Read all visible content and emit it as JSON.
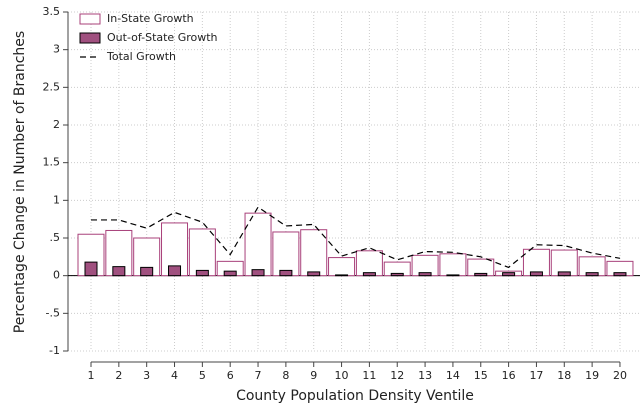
{
  "chart_data": {
    "type": "bar",
    "x_label": "County Population Density Ventile",
    "y_label": "Percentage Change in Number of Branches",
    "categories": [
      "1",
      "2",
      "3",
      "4",
      "5",
      "6",
      "7",
      "8",
      "9",
      "10",
      "11",
      "12",
      "13",
      "14",
      "15",
      "16",
      "17",
      "18",
      "19",
      "20"
    ],
    "series": [
      {
        "name": "In-State Growth",
        "kind": "bar",
        "style": "outline",
        "color": "#a8407a",
        "values": [
          0.55,
          0.6,
          0.5,
          0.7,
          0.62,
          0.19,
          0.83,
          0.58,
          0.61,
          0.24,
          0.33,
          0.18,
          0.27,
          0.29,
          0.22,
          0.06,
          0.35,
          0.34,
          0.25,
          0.19
        ]
      },
      {
        "name": "Out-of-State Growth",
        "kind": "bar",
        "style": "filled",
        "color": "#a0507f",
        "values": [
          0.18,
          0.12,
          0.11,
          0.13,
          0.07,
          0.06,
          0.08,
          0.07,
          0.05,
          0.01,
          0.04,
          0.03,
          0.04,
          0.01,
          0.03,
          0.04,
          0.05,
          0.05,
          0.04,
          0.04
        ]
      },
      {
        "name": "Total Growth",
        "kind": "line",
        "style": "dashed",
        "color": "#000000",
        "values": [
          0.74,
          0.74,
          0.63,
          0.84,
          0.71,
          0.28,
          0.91,
          0.66,
          0.68,
          0.26,
          0.37,
          0.21,
          0.32,
          0.31,
          0.25,
          0.11,
          0.41,
          0.4,
          0.3,
          0.23
        ]
      }
    ],
    "ylim": [
      -1,
      3.5
    ],
    "yticks": [
      -1,
      {
        "value": -0.5,
        "label": "-.5"
      },
      0,
      {
        "value": 0.5,
        "label": ".5"
      },
      1,
      1.5,
      2,
      2.5,
      3,
      3.5
    ],
    "grid": true,
    "legend": "top-left"
  }
}
